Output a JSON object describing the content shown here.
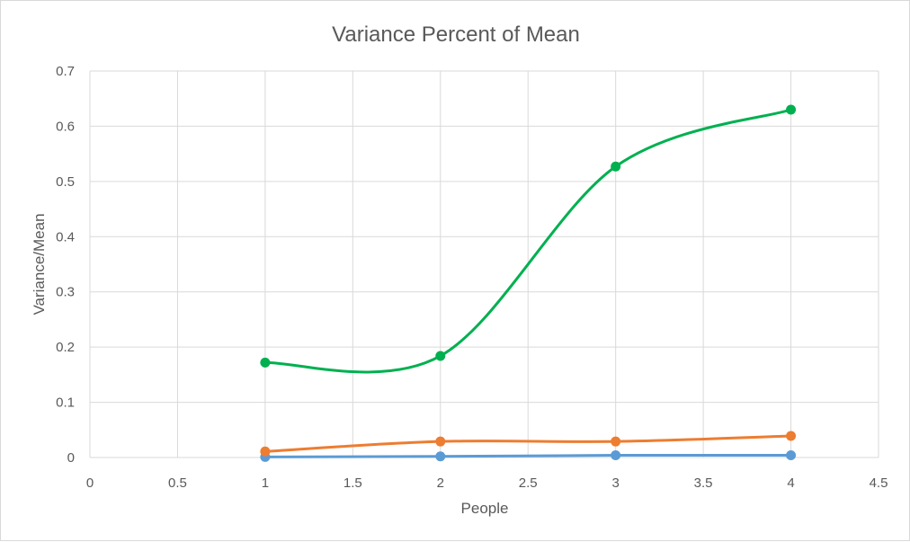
{
  "chart_data": {
    "type": "scatter",
    "title": "Variance Percent of Mean",
    "xlabel": "People",
    "ylabel": "Variance/Mean",
    "xlim": [
      0,
      4.5
    ],
    "ylim": [
      0,
      0.7
    ],
    "x_ticks": [
      "0",
      "0.5",
      "1",
      "1.5",
      "2",
      "2.5",
      "3",
      "3.5",
      "4",
      "4.5"
    ],
    "y_ticks": [
      "0",
      "0.1",
      "0.2",
      "0.3",
      "0.4",
      "0.5",
      "0.6",
      "0.7"
    ],
    "grid": true,
    "smooth_lines": true,
    "legend": "none",
    "series": [
      {
        "color": "#5b9bd5",
        "x": [
          1,
          2,
          3,
          4
        ],
        "values": [
          0.001,
          0.002,
          0.004,
          0.004
        ]
      },
      {
        "color": "#ed7d31",
        "x": [
          1,
          2,
          3,
          4
        ],
        "values": [
          0.011,
          0.029,
          0.029,
          0.039
        ]
      },
      {
        "color": "#00b050",
        "x": [
          1,
          2,
          3,
          4
        ],
        "values": [
          0.172,
          0.184,
          0.527,
          0.63
        ]
      }
    ]
  }
}
